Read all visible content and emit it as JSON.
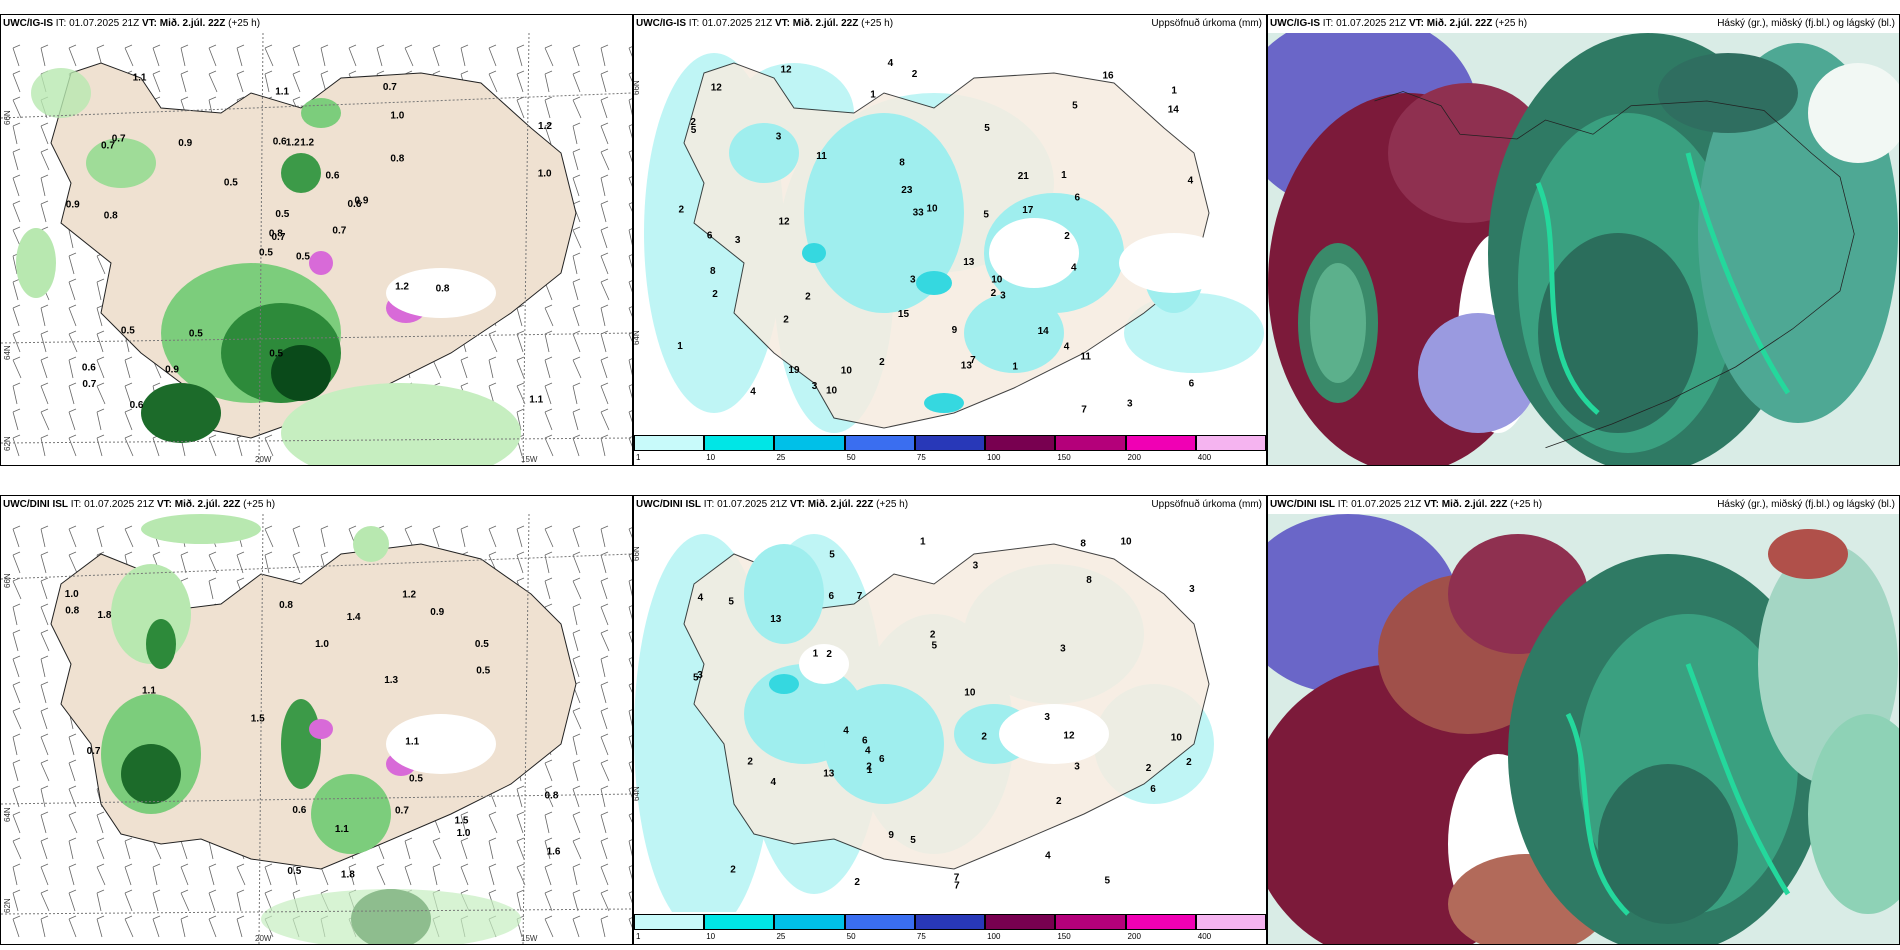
{
  "panels": {
    "ig_wind": {
      "model": "UWC/IG-IS",
      "it": "IT: 01.07.2025 21Z",
      "vt": "VT: Mið. 2.júl. 22Z",
      "lead": "(+25 h)"
    },
    "ig_precip": {
      "model": "UWC/IG-IS",
      "it": "IT: 01.07.2025 21Z",
      "vt": "VT: Mið. 2.júl. 22Z",
      "lead": "(+25 h)",
      "right": "Uppsöfnuð úrkoma (mm)"
    },
    "ig_cloud": {
      "model": "UWC/IG-IS",
      "it": "IT: 01.07.2025 21Z",
      "vt": "VT: Mið. 2.júl. 22Z",
      "lead": "(+25 h)",
      "right": "Háský (gr.), miðský (fj.bl.) og lágský (bl.)"
    },
    "dini_wind": {
      "model": "UWC/DINI ISL",
      "it": "IT: 01.07.2025 21Z",
      "vt": "VT: Mið. 2.júl. 22Z",
      "lead": "(+25 h)"
    },
    "dini_precip": {
      "model": "UWC/DINI ISL",
      "it": "IT: 01.07.2025 21Z",
      "vt": "VT: Mið. 2.júl. 22Z",
      "lead": "(+25 h)",
      "right": "Uppsöfnuð úrkoma (mm)"
    },
    "dini_cloud": {
      "model": "UWC/DINI ISL",
      "it": "IT: 01.07.2025 21Z",
      "vt": "VT: Mið. 2.júl. 22Z",
      "lead": "(+25 h)",
      "right": "Háský (gr.), miðský (fj.bl.) og lágský (bl.)"
    }
  },
  "axes": {
    "lat_66": "66N",
    "lat_64": "64N",
    "lat_62": "62N",
    "lon_20": "20W",
    "lon_15": "15W"
  },
  "colorbar": {
    "ticks": [
      "1",
      "10",
      "25",
      "50",
      "75",
      "100",
      "150",
      "200",
      "400"
    ],
    "colors": [
      "#c8fafa",
      "#00e6e6",
      "#00c0e8",
      "#3a6ef0",
      "#2838b8",
      "#780050",
      "#b4007a",
      "#f000b4",
      "#f5b4f0"
    ]
  },
  "ig_wind_labels": [
    "0.5",
    "0.7",
    "0.7",
    "0.6",
    "0.6",
    "0.5",
    "0.7",
    "1.2",
    "1.0",
    "0.7",
    "1.1",
    "1.1",
    "0.8",
    "1.2",
    "0.5",
    "0.8",
    "0.6",
    "0.6",
    "0.6",
    "0.5",
    "0.5",
    "0.7",
    "0.9",
    "1.2",
    "0.9",
    "0.8",
    "0.7",
    "1.1",
    "0.9",
    "1.2",
    "1.0",
    "0.8",
    "0.5",
    "0.5",
    "0.9"
  ],
  "ig_precip_labels": [
    "2",
    "2",
    "1",
    "1",
    "2",
    "3",
    "3",
    "5",
    "8",
    "16",
    "10",
    "4",
    "4",
    "5",
    "3",
    "2",
    "7",
    "6",
    "13",
    "15",
    "14",
    "11",
    "14",
    "23",
    "19",
    "33",
    "10",
    "12",
    "10",
    "13",
    "8",
    "7",
    "5",
    "4",
    "3",
    "2",
    "6",
    "12",
    "10",
    "11",
    "9",
    "17",
    "6",
    "4",
    "3",
    "2",
    "5",
    "1",
    "2",
    "12",
    "21",
    "4",
    "3",
    "2",
    "1",
    "1",
    "2"
  ],
  "dini_wind_labels": [
    "1.0",
    "1.0",
    "1.0",
    "0.5",
    "0.5",
    "0.8",
    "1.8",
    "1.2",
    "1.1",
    "0.7",
    "1.5",
    "1.4",
    "1.1",
    "1.8",
    "1.6",
    "0.9",
    "0.8",
    "0.7",
    "1.1",
    "0.5",
    "0.8",
    "0.6",
    "1.3",
    "1.5",
    "0.5"
  ],
  "dini_precip_labels": [
    "4",
    "2",
    "2",
    "3",
    "6",
    "3",
    "5",
    "8",
    "10",
    "7",
    "5",
    "9",
    "3",
    "13",
    "12",
    "13",
    "4",
    "5",
    "3",
    "2",
    "6",
    "4",
    "1",
    "2",
    "5",
    "10",
    "10",
    "4",
    "8",
    "2",
    "6",
    "1",
    "2",
    "7",
    "1",
    "2",
    "3",
    "5",
    "2",
    "4",
    "2",
    "6",
    "7",
    "2",
    "5",
    "3"
  ]
}
